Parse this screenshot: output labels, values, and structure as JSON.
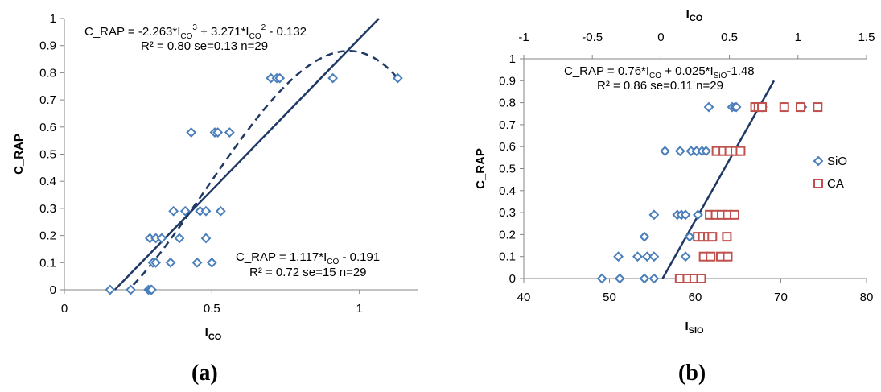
{
  "captions": {
    "a": "(a)",
    "b": "(b)"
  },
  "chart_data": [
    {
      "id": "a",
      "type": "scatter",
      "xlim": [
        0,
        1.2
      ],
      "ylim": [
        0,
        1
      ],
      "xticks": [
        0,
        0.5,
        1
      ],
      "yticks": [
        0,
        0.1,
        0.2,
        0.3,
        0.4,
        0.5,
        0.6,
        0.7,
        0.8,
        0.9,
        1
      ],
      "xlabel": {
        "main": "I",
        "sub": "CO"
      },
      "ylabel": "C_RAP",
      "grid": false,
      "points": [
        {
          "x": 0.155,
          "y": 0
        },
        {
          "x": 0.225,
          "y": 0
        },
        {
          "x": 0.285,
          "y": 0
        },
        {
          "x": 0.292,
          "y": 0
        },
        {
          "x": 0.296,
          "y": 0
        },
        {
          "x": 0.29,
          "y": 0.19
        },
        {
          "x": 0.31,
          "y": 0.19
        },
        {
          "x": 0.33,
          "y": 0.19
        },
        {
          "x": 0.3,
          "y": 0.1
        },
        {
          "x": 0.31,
          "y": 0.1
        },
        {
          "x": 0.36,
          "y": 0.1
        },
        {
          "x": 0.45,
          "y": 0.1
        },
        {
          "x": 0.5,
          "y": 0.1
        },
        {
          "x": 0.37,
          "y": 0.29
        },
        {
          "x": 0.41,
          "y": 0.29
        },
        {
          "x": 0.46,
          "y": 0.29
        },
        {
          "x": 0.48,
          "y": 0.29
        },
        {
          "x": 0.53,
          "y": 0.29
        },
        {
          "x": 0.39,
          "y": 0.19
        },
        {
          "x": 0.48,
          "y": 0.19
        },
        {
          "x": 0.43,
          "y": 0.58
        },
        {
          "x": 0.51,
          "y": 0.58
        },
        {
          "x": 0.52,
          "y": 0.58
        },
        {
          "x": 0.56,
          "y": 0.58
        },
        {
          "x": 0.7,
          "y": 0.78
        },
        {
          "x": 0.72,
          "y": 0.78
        },
        {
          "x": 0.73,
          "y": 0.78
        },
        {
          "x": 0.91,
          "y": 0.78
        },
        {
          "x": 1.13,
          "y": 0.78
        }
      ],
      "fit_linear": {
        "slope": 1.117,
        "intercept": -0.191
      },
      "fit_cubic": {
        "a3": -2.263,
        "a2": 3.271,
        "c": -0.132
      },
      "annotations": {
        "cubic": {
          "prefix": "C_RAP = -2.263*I",
          "sub1": "CO",
          "mid1": "3",
          "text2": " + 3.271*I",
          "sub2": "CO",
          "mid2": "2",
          "text3": " - 0.132",
          "stats": "R² = 0.80 se=0.13 n=29"
        },
        "linear": {
          "prefix": "C_RAP = 1.117*I",
          "sub1": "CO",
          "text2": " - 0.191",
          "stats": "R² = 0.72 se=15  n=29"
        }
      },
      "colors": {
        "marker": "#4a7ebb",
        "line": "#1f3864",
        "axis": "#868686"
      }
    },
    {
      "id": "b",
      "type": "scatter",
      "xlim": [
        40,
        80
      ],
      "x2lim": [
        -1,
        1.5
      ],
      "ylim": [
        0,
        1
      ],
      "xticks": [
        40,
        50,
        60,
        70,
        80
      ],
      "x2ticks": [
        -1,
        -0.5,
        0,
        0.5,
        1,
        1.5
      ],
      "yticks": [
        0,
        0.1,
        0.2,
        0.3,
        0.4,
        0.5,
        0.6,
        0.7,
        0.8,
        0.9,
        1
      ],
      "xlabel": {
        "main": "I",
        "sub": "SiO"
      },
      "x2label": {
        "main": "I",
        "sub": "CO"
      },
      "ylabel": "C_RAP",
      "grid": false,
      "legend_position": "right",
      "series": [
        {
          "name": "SiO",
          "marker": "diamond",
          "color": "#4a7ebb",
          "axis": "top",
          "points": [
            {
              "x": -0.43,
              "y": 0
            },
            {
              "x": -0.3,
              "y": 0
            },
            {
              "x": -0.12,
              "y": 0
            },
            {
              "x": -0.05,
              "y": 0
            },
            {
              "x": -0.31,
              "y": 0.1
            },
            {
              "x": -0.17,
              "y": 0.1
            },
            {
              "x": -0.1,
              "y": 0.1
            },
            {
              "x": -0.05,
              "y": 0.1
            },
            {
              "x": 0.18,
              "y": 0.1
            },
            {
              "x": -0.12,
              "y": 0.19
            },
            {
              "x": 0.21,
              "y": 0.19
            },
            {
              "x": 0.29,
              "y": 0.19
            },
            {
              "x": -0.05,
              "y": 0.29
            },
            {
              "x": 0.12,
              "y": 0.29
            },
            {
              "x": 0.15,
              "y": 0.29
            },
            {
              "x": 0.18,
              "y": 0.29
            },
            {
              "x": 0.27,
              "y": 0.29
            },
            {
              "x": 0.03,
              "y": 0.58
            },
            {
              "x": 0.14,
              "y": 0.58
            },
            {
              "x": 0.22,
              "y": 0.58
            },
            {
              "x": 0.26,
              "y": 0.58
            },
            {
              "x": 0.3,
              "y": 0.58
            },
            {
              "x": 0.33,
              "y": 0.58
            },
            {
              "x": 0.35,
              "y": 0.78
            },
            {
              "x": 0.52,
              "y": 0.78
            },
            {
              "x": 0.54,
              "y": 0.78
            },
            {
              "x": 0.55,
              "y": 0.78
            },
            {
              "x": 0.74,
              "y": 0.78
            },
            {
              "x": 1.03,
              "y": 0.78
            }
          ]
        },
        {
          "name": "CA",
          "marker": "square",
          "color": "#c0504d",
          "axis": "bottom",
          "points": [
            {
              "x": 58.2,
              "y": 0
            },
            {
              "x": 59.1,
              "y": 0
            },
            {
              "x": 59.9,
              "y": 0
            },
            {
              "x": 60.7,
              "y": 0
            },
            {
              "x": 61.0,
              "y": 0.1
            },
            {
              "x": 61.8,
              "y": 0.1
            },
            {
              "x": 63.0,
              "y": 0.1
            },
            {
              "x": 63.8,
              "y": 0.1
            },
            {
              "x": 60.3,
              "y": 0.19
            },
            {
              "x": 60.9,
              "y": 0.19
            },
            {
              "x": 61.5,
              "y": 0.19
            },
            {
              "x": 62.0,
              "y": 0.19
            },
            {
              "x": 63.7,
              "y": 0.19
            },
            {
              "x": 61.7,
              "y": 0.29
            },
            {
              "x": 62.4,
              "y": 0.29
            },
            {
              "x": 63.1,
              "y": 0.29
            },
            {
              "x": 63.8,
              "y": 0.29
            },
            {
              "x": 64.6,
              "y": 0.29
            },
            {
              "x": 62.5,
              "y": 0.58
            },
            {
              "x": 63.3,
              "y": 0.58
            },
            {
              "x": 64.0,
              "y": 0.58
            },
            {
              "x": 64.7,
              "y": 0.58
            },
            {
              "x": 65.3,
              "y": 0.58
            },
            {
              "x": 67.0,
              "y": 0.78
            },
            {
              "x": 67.4,
              "y": 0.78
            },
            {
              "x": 67.8,
              "y": 0.78
            },
            {
              "x": 70.4,
              "y": 0.78
            },
            {
              "x": 72.3,
              "y": 0.78
            },
            {
              "x": 74.3,
              "y": 0.78
            }
          ]
        }
      ],
      "fit_line": {
        "x1": 56.2,
        "y1": 0,
        "x2": 69.2,
        "y2": 0.9
      },
      "annotation": {
        "prefix": "C_RAP = 0.76*I",
        "sub1": "CO",
        "text2": " + 0.025*I",
        "sub2": "SiO",
        "text3": "-1.48",
        "stats": "R² = 0.86  se=0.11  n=29"
      },
      "colors": {
        "line": "#1f3864",
        "axis": "#868686"
      }
    }
  ]
}
